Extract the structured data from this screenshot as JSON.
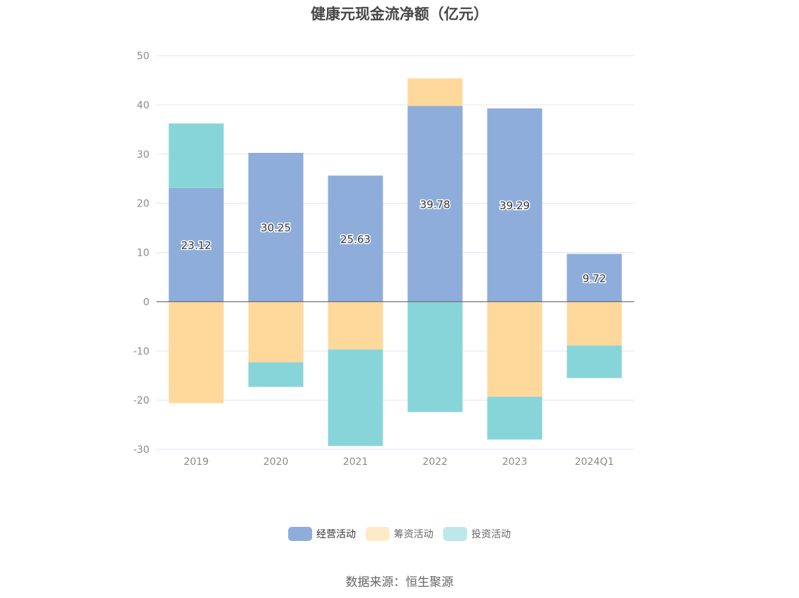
{
  "title": "健康元现金流净额（亿元）",
  "source_note": "数据来源：恒生聚源",
  "colors": {
    "operating": "#8eadda",
    "financing": "#ffd99b",
    "investing": "#87d5d9",
    "axis": "#6e7079",
    "grid": "#e0e6f1",
    "tick_text": "#8a8a8a"
  },
  "chart_data": {
    "type": "bar",
    "stacked": true,
    "title": "健康元现金流净额（亿元）",
    "categories": [
      "2019",
      "2020",
      "2021",
      "2022",
      "2023",
      "2024Q1"
    ],
    "series": [
      {
        "name": "经营活动",
        "color": "#8eadda",
        "values": [
          23.12,
          30.25,
          25.63,
          39.78,
          39.29,
          9.72
        ],
        "labels": [
          "23.12",
          "30.25",
          "25.63",
          "39.78",
          "39.29",
          "9.72"
        ]
      },
      {
        "name": "筹资活动",
        "color": "#ffd99b",
        "values": [
          -20.6,
          -12.3,
          -9.7,
          5.6,
          -19.3,
          -8.9
        ]
      },
      {
        "name": "投资活动",
        "color": "#87d5d9",
        "values": [
          13.1,
          -5.0,
          -19.6,
          -22.4,
          -8.7,
          -6.6
        ]
      }
    ],
    "ylim": [
      -30,
      50
    ],
    "yticks": [
      50,
      40,
      30,
      20,
      10,
      0,
      -10,
      -20,
      -30
    ],
    "grid": true,
    "legend_position": "bottom-center"
  }
}
